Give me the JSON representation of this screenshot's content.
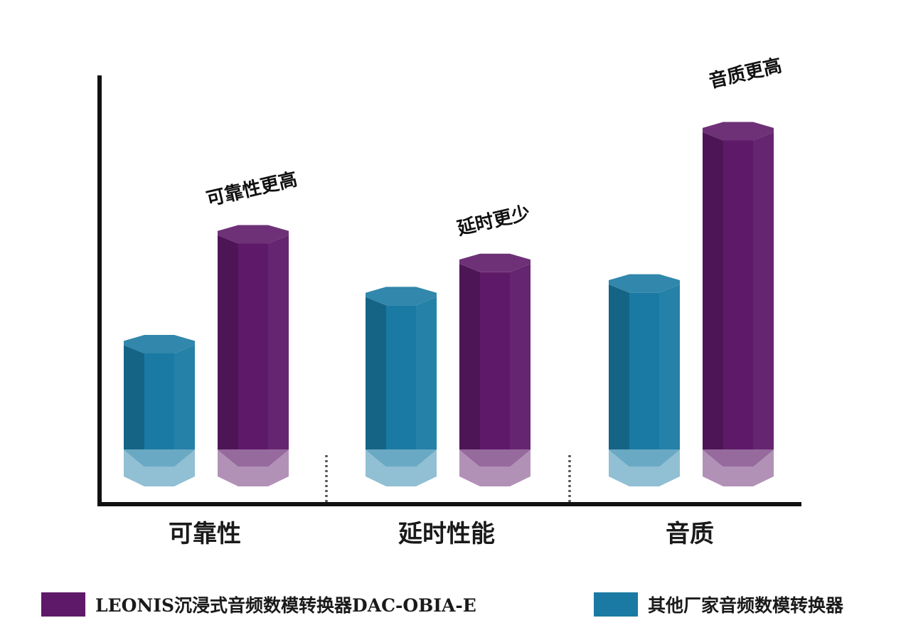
{
  "chart_data": {
    "type": "bar",
    "categories": [
      "可靠性",
      "延时性能",
      "音质"
    ],
    "series": [
      {
        "name": "其他厂家音频数模转换器",
        "color": "#1a7aa3",
        "values": [
          1.0,
          1.42,
          1.53
        ]
      },
      {
        "name": "LEONIS沉浸式音频数模转换器DAC-OBIA-E",
        "color": "#5e1a68",
        "values": [
          1.96,
          1.71,
          2.86
        ]
      }
    ],
    "annotations": [
      "可靠性更高",
      "延时更少",
      "音质更高"
    ],
    "axes_visible": "x and y axis lines only, no ticks",
    "grid": false,
    "legend_position": "bottom"
  },
  "legend": [
    {
      "label": "LEONIS沉浸式音频数模转换器DAC-OBIA-E",
      "color": "#5e1a68"
    },
    {
      "label": "其他厂家音频数模转换器",
      "color": "#1a7aa3"
    }
  ]
}
